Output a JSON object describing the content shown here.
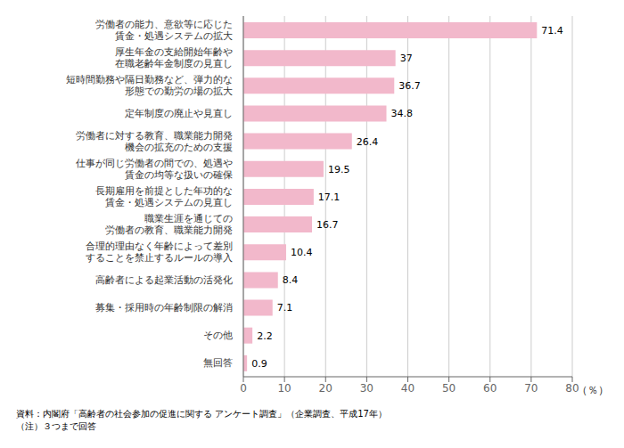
{
  "chart_data": {
    "type": "bar",
    "orientation": "horizontal",
    "categories": [
      "労働者の能力、意欲等に応じた\n賃金・処遇システムの拡大",
      "厚生年金の支給開始年齢や\n在職老齢年金制度の見直し",
      "短時間勤務や隔日勤務など、弾力的な\n形態での勤労の場の拡大",
      "定年制度の廃止や見直し",
      "労働者に対する教育、職業能力開発\n機会の拡充のための支援",
      "仕事が同じ労働者の間での、処遇や\n賃金の均等な扱いの確保",
      "長期雇用を前提とした年功的な\n賃金・処遇システムの見直し",
      "職業生涯を通じての\n労働者の教育、職業能力開発",
      "合理的理由なく年齢によって差別\nすることを禁止するルールの導入",
      "高齢者による起業活動の活発化",
      "募集・採用時の年齢制限の解消",
      "その他",
      "無回答"
    ],
    "values": [
      71.4,
      37.0,
      36.7,
      34.8,
      26.4,
      19.5,
      17.1,
      16.7,
      10.4,
      8.4,
      7.1,
      2.2,
      0.9
    ],
    "color": "#f2b8cb",
    "xlabel": "（％）",
    "xlim": [
      0,
      80
    ],
    "xticks": [
      0,
      10,
      20,
      30,
      40,
      50,
      60,
      70,
      80
    ],
    "grid": true,
    "data_labels": true,
    "annotations": [
      "資料：内閣府「高齢者の社会参加の促進に関する アンケート調査」（企業調査、平成17年）",
      "（注）３つまで回答"
    ]
  }
}
